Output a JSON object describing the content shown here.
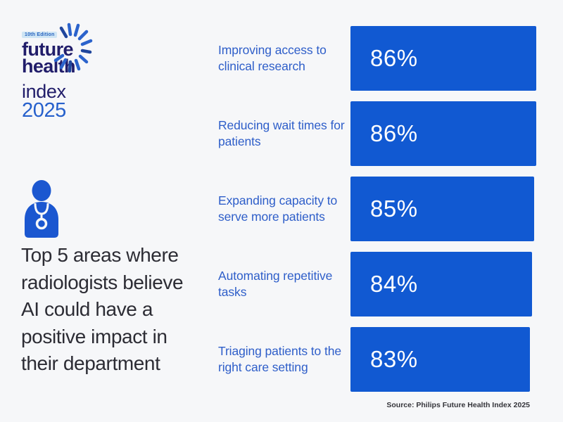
{
  "logo": {
    "edition_badge": "10th Edition",
    "word1": "future",
    "word2": "health",
    "word3": "index",
    "year": "2025"
  },
  "headline": "Top 5 areas where radiologists believe AI could have a positive impact in their department",
  "chart_data": {
    "type": "bar",
    "orientation": "horizontal",
    "title": "Top 5 areas where radiologists believe AI could have a positive impact in their department",
    "unit": "%",
    "xlim": [
      0,
      100
    ],
    "grid": false,
    "legend": false,
    "categories": [
      "Improving access to clinical research",
      "Reducing wait times for patients",
      "Expanding capacity to serve more patients",
      "Automating repetitive tasks",
      "Triaging patients to the right care setting"
    ],
    "values": [
      86,
      86,
      85,
      84,
      83
    ],
    "value_labels": [
      "86%",
      "86%",
      "85%",
      "84%",
      "83%"
    ]
  },
  "source": "Source: Philips Future Health Index 2025",
  "icons": {
    "starburst": "starburst-rays-icon",
    "person": "radiologist-stethoscope-icon"
  },
  "colors": {
    "background": "#f6f7f9",
    "bar_blue": "#1159d2",
    "label_blue": "#2e5ec9",
    "logo_navy": "#211d6a",
    "logo_year_blue": "#2660cc",
    "headline_dark": "#2c2c34",
    "badge_bg": "#cfe5f4",
    "badge_text": "#2a65c0",
    "source_text": "#35353b",
    "white": "#ffffff"
  }
}
